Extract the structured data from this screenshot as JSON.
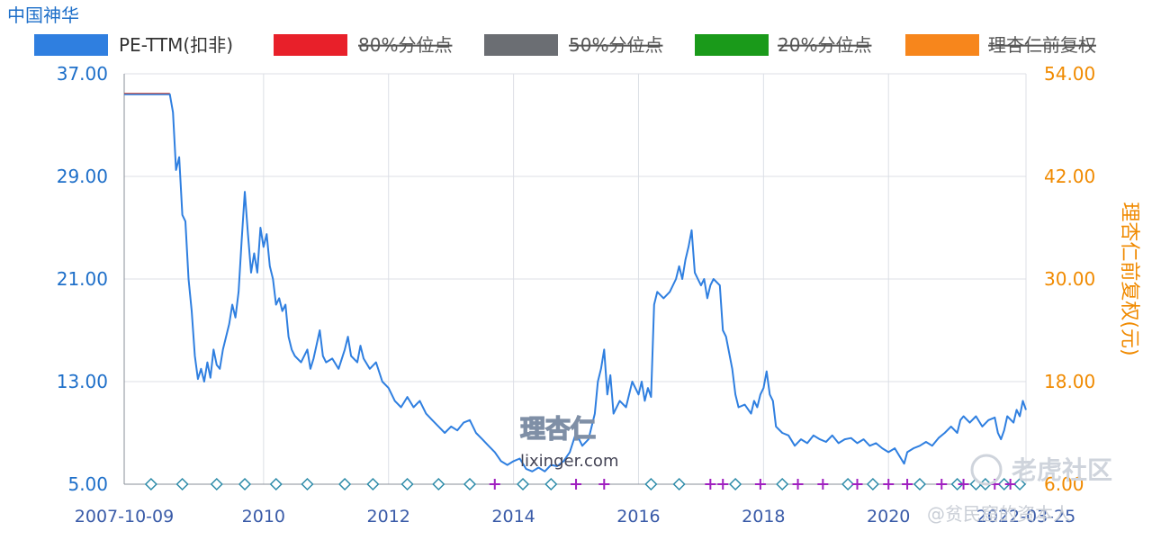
{
  "chart_data": {
    "type": "line",
    "title": "中国神华",
    "legend": [
      {
        "name": "PE-TTM(扣非)",
        "color": "#2f7fe0",
        "enabled": true
      },
      {
        "name": "80%分位点",
        "color": "#e8202a",
        "enabled": false
      },
      {
        "name": "50%分位点",
        "color": "#6b6e73",
        "enabled": false
      },
      {
        "name": "20%分位点",
        "color": "#1a9a1a",
        "enabled": false
      },
      {
        "name": "理杏仁前复权",
        "color": "#f7861c",
        "enabled": false
      }
    ],
    "y_left": {
      "min": 5,
      "max": 37,
      "ticks": [
        "5.00",
        "13.00",
        "21.00",
        "29.00",
        "37.00"
      ]
    },
    "y_right": {
      "min": 6,
      "max": 54,
      "label": "理杏仁前复权(元)",
      "ticks": [
        "6.00",
        "18.00",
        "30.00",
        "42.00",
        "54.00"
      ]
    },
    "x_range": [
      2007.77,
      2022.2
    ],
    "x_ticks": [
      {
        "x": 2007.77,
        "label": "2007-10-09"
      },
      {
        "x": 2010,
        "label": "2010"
      },
      {
        "x": 2012,
        "label": "2012"
      },
      {
        "x": 2014,
        "label": "2014"
      },
      {
        "x": 2016,
        "label": "2016"
      },
      {
        "x": 2018,
        "label": "2018"
      },
      {
        "x": 2020,
        "label": "2020"
      },
      {
        "x": 2022.2,
        "label": "2022-03-25"
      }
    ],
    "grid": true,
    "legend_position": "top",
    "series": [
      {
        "name": "PE-TTM(扣非)",
        "color": "#2f7fe0",
        "points": [
          [
            2007.77,
            35.4
          ],
          [
            2008.5,
            35.4
          ],
          [
            2008.55,
            34.0
          ],
          [
            2008.6,
            29.5
          ],
          [
            2008.65,
            30.5
          ],
          [
            2008.7,
            26.0
          ],
          [
            2008.75,
            25.5
          ],
          [
            2008.8,
            21.0
          ],
          [
            2008.85,
            18.5
          ],
          [
            2008.9,
            15.0
          ],
          [
            2008.95,
            13.2
          ],
          [
            2009.0,
            14.0
          ],
          [
            2009.05,
            13.0
          ],
          [
            2009.1,
            14.5
          ],
          [
            2009.15,
            13.3
          ],
          [
            2009.2,
            15.5
          ],
          [
            2009.25,
            14.3
          ],
          [
            2009.3,
            14.0
          ],
          [
            2009.35,
            15.5
          ],
          [
            2009.4,
            16.5
          ],
          [
            2009.45,
            17.5
          ],
          [
            2009.5,
            19.0
          ],
          [
            2009.55,
            18.0
          ],
          [
            2009.6,
            20.0
          ],
          [
            2009.65,
            24.0
          ],
          [
            2009.7,
            27.8
          ],
          [
            2009.75,
            24.5
          ],
          [
            2009.8,
            21.5
          ],
          [
            2009.85,
            23.0
          ],
          [
            2009.9,
            21.5
          ],
          [
            2009.95,
            25.0
          ],
          [
            2010.0,
            23.5
          ],
          [
            2010.05,
            24.5
          ],
          [
            2010.1,
            22.0
          ],
          [
            2010.15,
            21.0
          ],
          [
            2010.2,
            19.0
          ],
          [
            2010.25,
            19.5
          ],
          [
            2010.3,
            18.5
          ],
          [
            2010.35,
            19.0
          ],
          [
            2010.4,
            16.5
          ],
          [
            2010.45,
            15.5
          ],
          [
            2010.5,
            15.0
          ],
          [
            2010.6,
            14.5
          ],
          [
            2010.7,
            15.5
          ],
          [
            2010.75,
            14.0
          ],
          [
            2010.8,
            14.8
          ],
          [
            2010.9,
            17.0
          ],
          [
            2010.95,
            15.0
          ],
          [
            2011.0,
            14.5
          ],
          [
            2011.1,
            14.8
          ],
          [
            2011.2,
            14.0
          ],
          [
            2011.3,
            15.5
          ],
          [
            2011.35,
            16.5
          ],
          [
            2011.4,
            15.0
          ],
          [
            2011.5,
            14.5
          ],
          [
            2011.55,
            15.8
          ],
          [
            2011.6,
            14.8
          ],
          [
            2011.7,
            14.0
          ],
          [
            2011.8,
            14.5
          ],
          [
            2011.9,
            13.0
          ],
          [
            2012.0,
            12.5
          ],
          [
            2012.1,
            11.5
          ],
          [
            2012.2,
            11.0
          ],
          [
            2012.3,
            11.8
          ],
          [
            2012.4,
            11.0
          ],
          [
            2012.5,
            11.5
          ],
          [
            2012.6,
            10.5
          ],
          [
            2012.7,
            10.0
          ],
          [
            2012.8,
            9.5
          ],
          [
            2012.9,
            9.0
          ],
          [
            2013.0,
            9.5
          ],
          [
            2013.1,
            9.2
          ],
          [
            2013.2,
            9.8
          ],
          [
            2013.3,
            10.0
          ],
          [
            2013.4,
            9.0
          ],
          [
            2013.5,
            8.5
          ],
          [
            2013.6,
            8.0
          ],
          [
            2013.7,
            7.5
          ],
          [
            2013.8,
            6.8
          ],
          [
            2013.9,
            6.5
          ],
          [
            2014.0,
            6.8
          ],
          [
            2014.1,
            7.0
          ],
          [
            2014.2,
            6.2
          ],
          [
            2014.3,
            6.0
          ],
          [
            2014.4,
            6.3
          ],
          [
            2014.5,
            6.0
          ],
          [
            2014.6,
            6.5
          ],
          [
            2014.7,
            6.4
          ],
          [
            2014.8,
            6.8
          ],
          [
            2014.9,
            7.5
          ],
          [
            2015.0,
            9.0
          ],
          [
            2015.1,
            8.0
          ],
          [
            2015.2,
            8.5
          ],
          [
            2015.3,
            10.5
          ],
          [
            2015.35,
            13.0
          ],
          [
            2015.4,
            14.0
          ],
          [
            2015.45,
            15.5
          ],
          [
            2015.5,
            12.0
          ],
          [
            2015.55,
            13.5
          ],
          [
            2015.6,
            10.5
          ],
          [
            2015.7,
            11.5
          ],
          [
            2015.8,
            11.0
          ],
          [
            2015.9,
            13.0
          ],
          [
            2016.0,
            12.0
          ],
          [
            2016.05,
            13.0
          ],
          [
            2016.1,
            11.5
          ],
          [
            2016.15,
            12.5
          ],
          [
            2016.2,
            11.8
          ],
          [
            2016.25,
            19.0
          ],
          [
            2016.3,
            20.0
          ],
          [
            2016.4,
            19.5
          ],
          [
            2016.5,
            20.0
          ],
          [
            2016.6,
            21.0
          ],
          [
            2016.65,
            22.0
          ],
          [
            2016.7,
            21.0
          ],
          [
            2016.75,
            22.5
          ],
          [
            2016.8,
            23.5
          ],
          [
            2016.85,
            24.8
          ],
          [
            2016.9,
            21.5
          ],
          [
            2016.95,
            21.0
          ],
          [
            2017.0,
            20.5
          ],
          [
            2017.05,
            21.0
          ],
          [
            2017.1,
            19.5
          ],
          [
            2017.15,
            20.5
          ],
          [
            2017.2,
            21.0
          ],
          [
            2017.3,
            20.5
          ],
          [
            2017.35,
            17.0
          ],
          [
            2017.4,
            16.5
          ],
          [
            2017.5,
            14.0
          ],
          [
            2017.55,
            12.0
          ],
          [
            2017.6,
            11.0
          ],
          [
            2017.7,
            11.2
          ],
          [
            2017.8,
            10.5
          ],
          [
            2017.85,
            11.5
          ],
          [
            2017.9,
            11.0
          ],
          [
            2017.95,
            12.0
          ],
          [
            2018.0,
            12.5
          ],
          [
            2018.05,
            13.8
          ],
          [
            2018.1,
            12.0
          ],
          [
            2018.15,
            11.5
          ],
          [
            2018.2,
            9.5
          ],
          [
            2018.3,
            9.0
          ],
          [
            2018.4,
            8.8
          ],
          [
            2018.5,
            8.0
          ],
          [
            2018.6,
            8.5
          ],
          [
            2018.7,
            8.2
          ],
          [
            2018.8,
            8.8
          ],
          [
            2018.9,
            8.5
          ],
          [
            2019.0,
            8.3
          ],
          [
            2019.1,
            8.8
          ],
          [
            2019.2,
            8.2
          ],
          [
            2019.3,
            8.5
          ],
          [
            2019.4,
            8.6
          ],
          [
            2019.5,
            8.2
          ],
          [
            2019.6,
            8.5
          ],
          [
            2019.7,
            8.0
          ],
          [
            2019.8,
            8.2
          ],
          [
            2019.9,
            7.8
          ],
          [
            2020.0,
            7.5
          ],
          [
            2020.1,
            7.8
          ],
          [
            2020.2,
            7.0
          ],
          [
            2020.25,
            6.6
          ],
          [
            2020.3,
            7.5
          ],
          [
            2020.4,
            7.8
          ],
          [
            2020.5,
            8.0
          ],
          [
            2020.6,
            8.3
          ],
          [
            2020.7,
            8.0
          ],
          [
            2020.8,
            8.6
          ],
          [
            2020.9,
            9.0
          ],
          [
            2021.0,
            9.5
          ],
          [
            2021.1,
            9.0
          ],
          [
            2021.15,
            10.0
          ],
          [
            2021.2,
            10.3
          ],
          [
            2021.3,
            9.8
          ],
          [
            2021.4,
            10.3
          ],
          [
            2021.5,
            9.5
          ],
          [
            2021.6,
            10.0
          ],
          [
            2021.7,
            10.2
          ],
          [
            2021.75,
            9.0
          ],
          [
            2021.8,
            8.5
          ],
          [
            2021.85,
            9.2
          ],
          [
            2021.9,
            10.3
          ],
          [
            2022.0,
            9.8
          ],
          [
            2022.05,
            10.8
          ],
          [
            2022.1,
            10.3
          ],
          [
            2022.15,
            11.5
          ],
          [
            2022.2,
            10.8
          ]
        ]
      }
    ],
    "markers": {
      "diamond_x": [
        2008.2,
        2008.7,
        2009.25,
        2009.7,
        2010.2,
        2010.7,
        2011.3,
        2011.75,
        2012.3,
        2012.8,
        2013.3,
        2014.15,
        2014.6,
        2016.2,
        2016.65,
        2017.55,
        2018.3,
        2019.35,
        2019.75,
        2020.5,
        2021.1,
        2021.4,
        2021.55,
        2021.85,
        2022.1
      ],
      "plus_x": [
        2013.7,
        2015.0,
        2015.45,
        2017.15,
        2017.35,
        2017.95,
        2018.55,
        2018.95,
        2019.5,
        2020.0,
        2020.3,
        2020.85,
        2021.2,
        2021.7,
        2021.95
      ],
      "diamond_color": "#2b8aa8",
      "plus_color": "#a020c0"
    },
    "watermarks": [
      "理杏仁",
      "lixinger.com",
      "老虎社区",
      "@贫民窟的资本人"
    ]
  }
}
